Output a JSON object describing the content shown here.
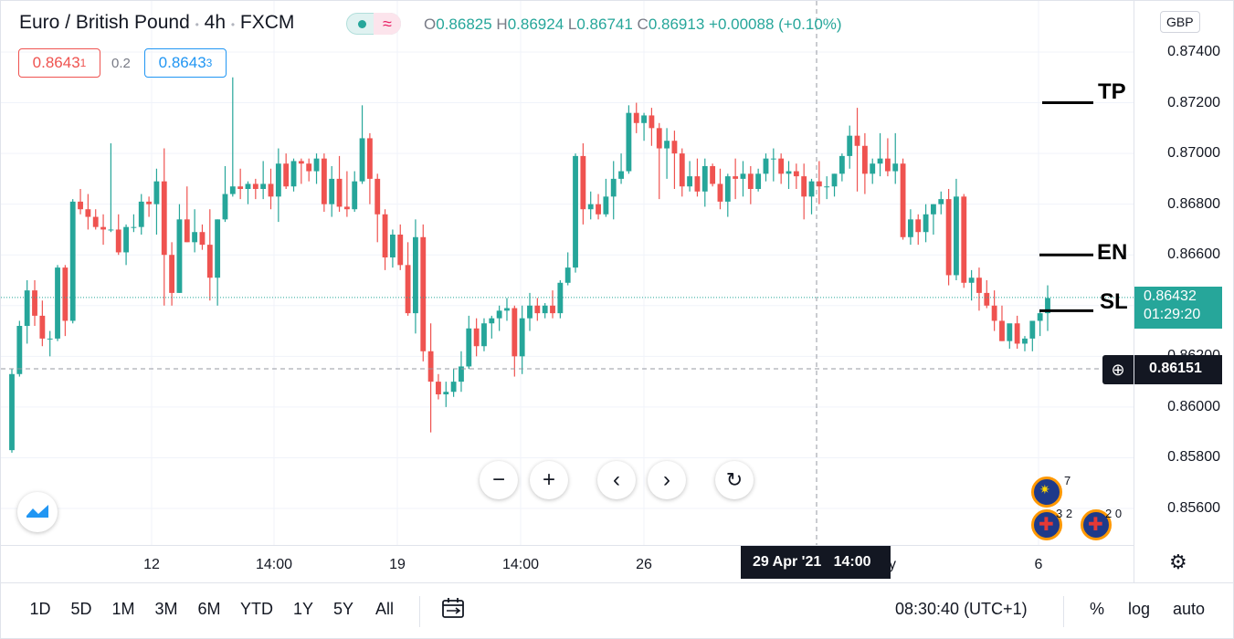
{
  "legend": {
    "symbol": "Euro / British Pound",
    "interval": "4h",
    "exchange": "FXCM",
    "sep1": "/",
    "dot": "•",
    "open_k": "O",
    "open": "0.86825",
    "high_k": "H",
    "high": "0.86924",
    "low_k": "L",
    "low": "0.86741",
    "close_k": "C",
    "close": "0.86913",
    "change": "+0.00088 (+0.10%)",
    "sell_price_main": "0.8643",
    "sell_price_sup": "1",
    "spread": "0.2",
    "buy_price_main": "0.8643",
    "buy_price_sup": "3"
  },
  "currency": "GBP",
  "price_axis": {
    "ticks": [
      "0.87400",
      "0.87200",
      "0.87000",
      "0.86800",
      "0.86600",
      "0.86400",
      "0.86200",
      "0.86000",
      "0.85800",
      "0.85600"
    ],
    "current_price": "0.86432",
    "countdown": "01:29:20",
    "crosshair_price": "0.86151"
  },
  "time_axis": {
    "ticks": [
      "12",
      "14:00",
      "19",
      "14:00",
      "26",
      "6"
    ],
    "crosshair_label": "29 Apr '21   14:00",
    "partial": "y"
  },
  "annotations": [
    "TP",
    "EN",
    "SL"
  ],
  "events": {
    "eu_count": "7",
    "gb1_count": "3 2",
    "gb2_count": "2 0"
  },
  "bottom": {
    "ranges": [
      "1D",
      "5D",
      "1M",
      "3M",
      "6M",
      "YTD",
      "1Y",
      "5Y",
      "All"
    ],
    "clock": "08:30:40 (UTC+1)",
    "percent": "%",
    "log": "log",
    "auto": "auto"
  },
  "colors": {
    "up": "#26a69a",
    "down": "#ef5350",
    "text": "#131722",
    "axis_bg": "#131722"
  },
  "chart_data": {
    "type": "candlestick",
    "title": "Euro / British Pound · 4h · FXCM",
    "ylim": [
      0.855,
      0.8753
    ],
    "candles": [
      [
        0.8583,
        0.8615,
        0.8582,
        0.8613
      ],
      [
        0.8613,
        0.8634,
        0.8612,
        0.8632
      ],
      [
        0.8632,
        0.865,
        0.8625,
        0.8646
      ],
      [
        0.8646,
        0.865,
        0.8632,
        0.8636
      ],
      [
        0.8636,
        0.8642,
        0.8624,
        0.8627
      ],
      [
        0.8627,
        0.863,
        0.862,
        0.8627
      ],
      [
        0.8627,
        0.8656,
        0.8626,
        0.8655
      ],
      [
        0.8655,
        0.8656,
        0.8628,
        0.8634
      ],
      [
        0.8634,
        0.8682,
        0.8633,
        0.8681
      ],
      [
        0.8681,
        0.8686,
        0.8676,
        0.8678
      ],
      [
        0.8678,
        0.8684,
        0.867,
        0.8675
      ],
      [
        0.8675,
        0.8678,
        0.867,
        0.8671
      ],
      [
        0.8671,
        0.8676,
        0.8664,
        0.867
      ],
      [
        0.867,
        0.8704,
        0.8669,
        0.867
      ],
      [
        0.867,
        0.8676,
        0.866,
        0.8661
      ],
      [
        0.8661,
        0.8672,
        0.8656,
        0.8671
      ],
      [
        0.8671,
        0.8676,
        0.8669,
        0.8671
      ],
      [
        0.8671,
        0.8684,
        0.8668,
        0.8681
      ],
      [
        0.8681,
        0.8683,
        0.8675,
        0.868
      ],
      [
        0.868,
        0.8694,
        0.8668,
        0.8689
      ],
      [
        0.8689,
        0.8702,
        0.864,
        0.866
      ],
      [
        0.866,
        0.8665,
        0.864,
        0.8645
      ],
      [
        0.8645,
        0.868,
        0.8645,
        0.8674
      ],
      [
        0.8674,
        0.8687,
        0.8665,
        0.8665
      ],
      [
        0.8665,
        0.8678,
        0.8661,
        0.8669
      ],
      [
        0.8669,
        0.8672,
        0.8662,
        0.8664
      ],
      [
        0.8664,
        0.8678,
        0.8642,
        0.8651
      ],
      [
        0.8651,
        0.8674,
        0.864,
        0.8674
      ],
      [
        0.8674,
        0.8695,
        0.8673,
        0.8684
      ],
      [
        0.8684,
        0.873,
        0.8683,
        0.8687
      ],
      [
        0.8687,
        0.8694,
        0.8682,
        0.8686
      ],
      [
        0.8686,
        0.8689,
        0.868,
        0.8688
      ],
      [
        0.8688,
        0.869,
        0.8682,
        0.8686
      ],
      [
        0.8686,
        0.8697,
        0.8682,
        0.8688
      ],
      [
        0.8688,
        0.8694,
        0.8678,
        0.8683
      ],
      [
        0.8683,
        0.8702,
        0.8673,
        0.8696
      ],
      [
        0.8696,
        0.87,
        0.8686,
        0.8687
      ],
      [
        0.8687,
        0.8698,
        0.8685,
        0.8697
      ],
      [
        0.8697,
        0.8698,
        0.8688,
        0.8696
      ],
      [
        0.8696,
        0.8698,
        0.8689,
        0.8693
      ],
      [
        0.8693,
        0.87,
        0.8688,
        0.8698
      ],
      [
        0.8698,
        0.87,
        0.8677,
        0.868
      ],
      [
        0.868,
        0.8695,
        0.8675,
        0.869
      ],
      [
        0.869,
        0.8699,
        0.8677,
        0.8679
      ],
      [
        0.8679,
        0.8693,
        0.8675,
        0.8678
      ],
      [
        0.8678,
        0.8693,
        0.8677,
        0.8689
      ],
      [
        0.8689,
        0.8719,
        0.8688,
        0.8706
      ],
      [
        0.8706,
        0.8708,
        0.868,
        0.869
      ],
      [
        0.869,
        0.8692,
        0.8665,
        0.8676
      ],
      [
        0.8676,
        0.8678,
        0.8654,
        0.8659
      ],
      [
        0.8659,
        0.867,
        0.8655,
        0.8668
      ],
      [
        0.8668,
        0.8672,
        0.8654,
        0.8656
      ],
      [
        0.8656,
        0.8665,
        0.8636,
        0.8637
      ],
      [
        0.8637,
        0.8674,
        0.8629,
        0.8667
      ],
      [
        0.8667,
        0.8672,
        0.8618,
        0.8622
      ],
      [
        0.8622,
        0.8633,
        0.859,
        0.861
      ],
      [
        0.861,
        0.8613,
        0.8603,
        0.8605
      ],
      [
        0.8605,
        0.861,
        0.86,
        0.8606
      ],
      [
        0.8606,
        0.8615,
        0.8604,
        0.861
      ],
      [
        0.861,
        0.8622,
        0.8606,
        0.8616
      ],
      [
        0.8616,
        0.8636,
        0.8615,
        0.8631
      ],
      [
        0.8631,
        0.8635,
        0.862,
        0.8624
      ],
      [
        0.8624,
        0.8635,
        0.8622,
        0.8633
      ],
      [
        0.8633,
        0.8636,
        0.8627,
        0.8635
      ],
      [
        0.8635,
        0.864,
        0.863,
        0.8638
      ],
      [
        0.8638,
        0.8643,
        0.8634,
        0.8639
      ],
      [
        0.8639,
        0.864,
        0.8612,
        0.862
      ],
      [
        0.862,
        0.864,
        0.8613,
        0.8635
      ],
      [
        0.8635,
        0.8645,
        0.863,
        0.864
      ],
      [
        0.864,
        0.8643,
        0.8634,
        0.8637
      ],
      [
        0.8637,
        0.8641,
        0.8635,
        0.864
      ],
      [
        0.864,
        0.8646,
        0.8635,
        0.8637
      ],
      [
        0.8637,
        0.865,
        0.8635,
        0.8649
      ],
      [
        0.8649,
        0.8661,
        0.8648,
        0.8655
      ],
      [
        0.8655,
        0.87,
        0.8653,
        0.8699
      ],
      [
        0.8699,
        0.8704,
        0.8672,
        0.8678
      ],
      [
        0.8678,
        0.8685,
        0.8674,
        0.868
      ],
      [
        0.868,
        0.8684,
        0.8674,
        0.8676
      ],
      [
        0.8676,
        0.869,
        0.8675,
        0.8683
      ],
      [
        0.8683,
        0.8697,
        0.8674,
        0.869
      ],
      [
        0.869,
        0.87,
        0.8688,
        0.8693
      ],
      [
        0.8693,
        0.8719,
        0.8692,
        0.8716
      ],
      [
        0.8716,
        0.872,
        0.8708,
        0.8712
      ],
      [
        0.8712,
        0.8716,
        0.8705,
        0.8715
      ],
      [
        0.8715,
        0.8718,
        0.8703,
        0.871
      ],
      [
        0.871,
        0.8712,
        0.8682,
        0.8702
      ],
      [
        0.8702,
        0.871,
        0.869,
        0.8705
      ],
      [
        0.8705,
        0.8709,
        0.8686,
        0.87
      ],
      [
        0.87,
        0.8702,
        0.8683,
        0.8687
      ],
      [
        0.8687,
        0.8697,
        0.8685,
        0.8691
      ],
      [
        0.8691,
        0.8698,
        0.8683,
        0.8685
      ],
      [
        0.8685,
        0.8698,
        0.8679,
        0.8695
      ],
      [
        0.8695,
        0.8696,
        0.8687,
        0.8688
      ],
      [
        0.8688,
        0.8694,
        0.8678,
        0.8681
      ],
      [
        0.8681,
        0.8692,
        0.8675,
        0.8691
      ],
      [
        0.8691,
        0.8698,
        0.8682,
        0.869
      ],
      [
        0.869,
        0.8697,
        0.8683,
        0.8692
      ],
      [
        0.8692,
        0.8695,
        0.868,
        0.8686
      ],
      [
        0.8686,
        0.8694,
        0.8685,
        0.8692
      ],
      [
        0.8692,
        0.87,
        0.8689,
        0.8698
      ],
      [
        0.8698,
        0.8702,
        0.8689,
        0.8698
      ],
      [
        0.8698,
        0.87,
        0.8688,
        0.8692
      ],
      [
        0.8692,
        0.8697,
        0.8686,
        0.8693
      ],
      [
        0.8693,
        0.8696,
        0.8686,
        0.8691
      ],
      [
        0.8691,
        0.8696,
        0.8674,
        0.8683
      ],
      [
        0.8683,
        0.869,
        0.8676,
        0.8689
      ],
      [
        0.8689,
        0.8697,
        0.868,
        0.8687
      ],
      [
        0.8687,
        0.8691,
        0.8682,
        0.8687
      ],
      [
        0.8687,
        0.8692,
        0.8683,
        0.8692
      ],
      [
        0.8692,
        0.87,
        0.8689,
        0.8699
      ],
      [
        0.8699,
        0.8711,
        0.8694,
        0.8707
      ],
      [
        0.8707,
        0.8718,
        0.8685,
        0.8703
      ],
      [
        0.8703,
        0.8708,
        0.8684,
        0.8692
      ],
      [
        0.8692,
        0.8698,
        0.8688,
        0.8696
      ],
      [
        0.8696,
        0.8708,
        0.8691,
        0.8698
      ],
      [
        0.8698,
        0.8706,
        0.8691,
        0.8693
      ],
      [
        0.8693,
        0.8708,
        0.8688,
        0.8696
      ],
      [
        0.8696,
        0.8698,
        0.8666,
        0.8667
      ],
      [
        0.8667,
        0.8678,
        0.8664,
        0.8674
      ],
      [
        0.8674,
        0.8676,
        0.8664,
        0.8669
      ],
      [
        0.8669,
        0.868,
        0.8665,
        0.8676
      ],
      [
        0.8676,
        0.868,
        0.8668,
        0.868
      ],
      [
        0.868,
        0.8685,
        0.8676,
        0.8682
      ],
      [
        0.8682,
        0.8686,
        0.8648,
        0.8652
      ],
      [
        0.8652,
        0.869,
        0.865,
        0.8683
      ],
      [
        0.8683,
        0.8684,
        0.8647,
        0.8649
      ],
      [
        0.8649,
        0.8654,
        0.8642,
        0.8651
      ],
      [
        0.8651,
        0.8655,
        0.8638,
        0.8645
      ],
      [
        0.8645,
        0.865,
        0.8639,
        0.864
      ],
      [
        0.864,
        0.8646,
        0.863,
        0.8634
      ],
      [
        0.8634,
        0.864,
        0.8626,
        0.8626
      ],
      [
        0.8626,
        0.8632,
        0.8623,
        0.8633
      ],
      [
        0.8633,
        0.8636,
        0.8623,
        0.8625
      ],
      [
        0.8625,
        0.8628,
        0.8622,
        0.8627
      ],
      [
        0.8627,
        0.8632,
        0.8622,
        0.8634
      ],
      [
        0.8634,
        0.8638,
        0.8628,
        0.8637
      ],
      [
        0.8637,
        0.8648,
        0.863,
        0.8643
      ]
    ],
    "horizontal_lines": [
      {
        "label": "TP",
        "y": 0.872
      },
      {
        "label": "EN",
        "y": 0.866
      },
      {
        "label": "SL",
        "y": 0.8638
      }
    ]
  }
}
